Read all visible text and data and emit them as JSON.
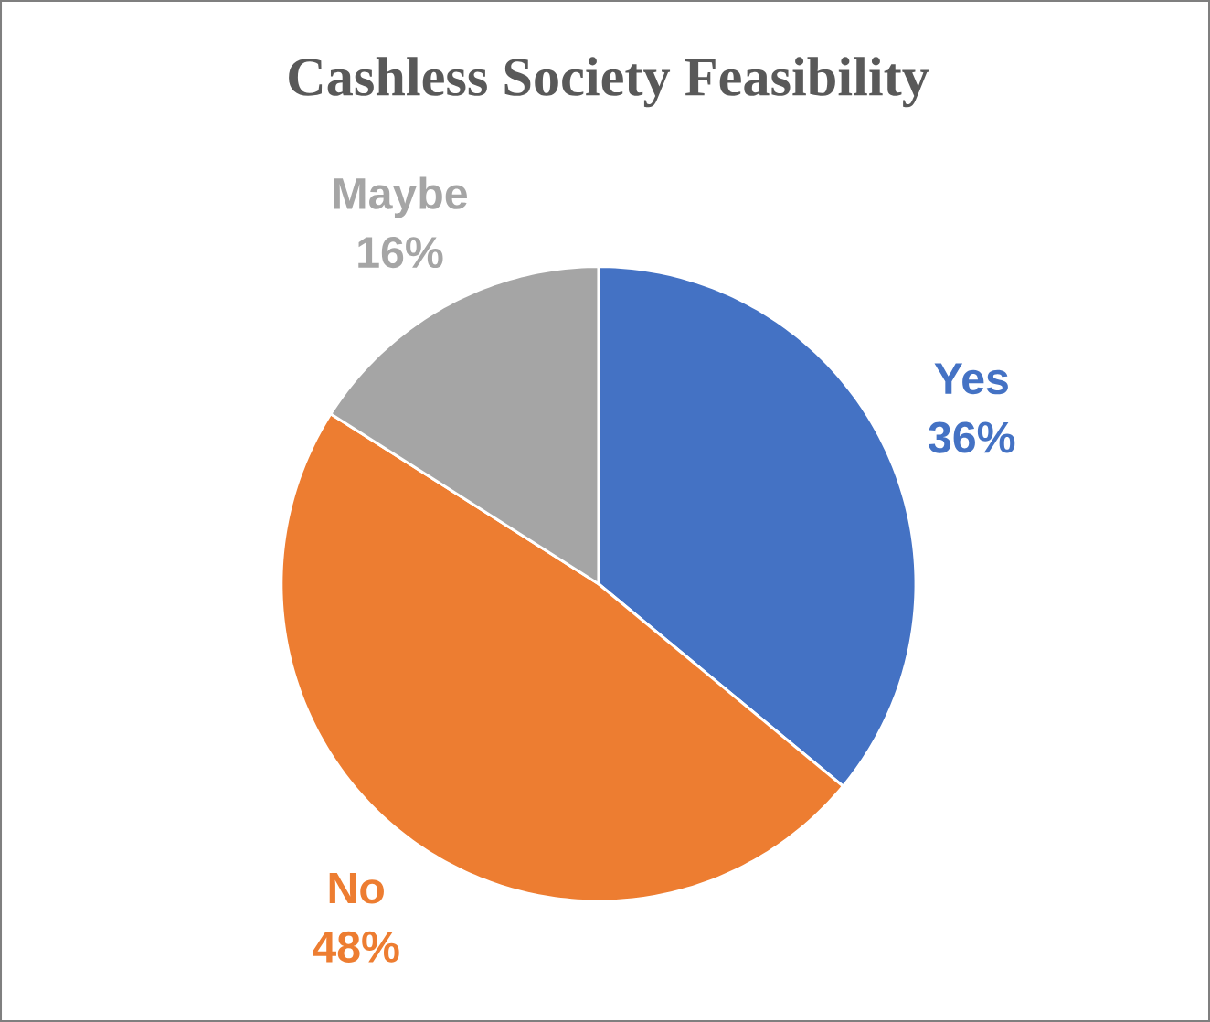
{
  "chart_data": {
    "type": "pie",
    "title": "Cashless Society Feasibility",
    "categories": [
      "Yes",
      "No",
      "Maybe"
    ],
    "values": [
      36,
      48,
      16
    ],
    "colors": [
      "#4472c4",
      "#ed7d31",
      "#a5a5a5"
    ],
    "value_labels": [
      "36%",
      "48%",
      "16%"
    ]
  }
}
